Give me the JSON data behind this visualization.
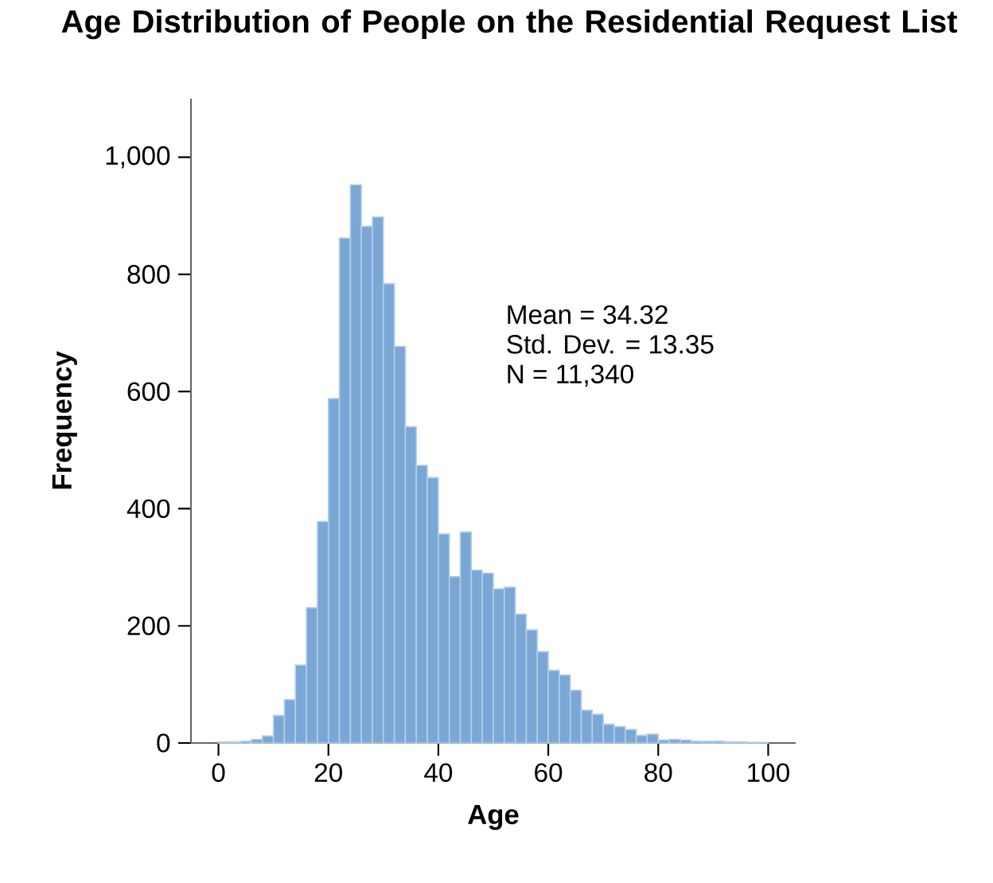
{
  "chart_data": {
    "type": "histogram",
    "title": "Age Distribution of People on the Residential Request List",
    "xlabel": "Age",
    "ylabel": "Frequency",
    "annotations": [
      "Mean = 34.32",
      "Std. Dev. = 13.35",
      "N = 11,340"
    ],
    "bins": [
      0,
      2,
      4,
      6,
      8,
      10,
      12,
      14,
      16,
      18,
      20,
      22,
      24,
      26,
      28,
      30,
      32,
      34,
      36,
      38,
      40,
      42,
      44,
      46,
      48,
      50,
      52,
      54,
      56,
      58,
      60,
      62,
      64,
      66,
      68,
      70,
      72,
      74,
      76,
      78,
      80,
      82,
      84,
      86,
      88,
      90,
      92,
      94,
      96,
      98,
      100
    ],
    "values": [
      2,
      2,
      3,
      6,
      12,
      47,
      74,
      133,
      231,
      378,
      588,
      862,
      953,
      882,
      898,
      784,
      677,
      540,
      474,
      453,
      357,
      284,
      360,
      295,
      290,
      263,
      266,
      220,
      193,
      156,
      124,
      116,
      90,
      56,
      49,
      32,
      28,
      23,
      13,
      15,
      5,
      6,
      5,
      3,
      3,
      3,
      2,
      2,
      1,
      1
    ],
    "color": "#7aa7d6",
    "xlim": [
      -5,
      105
    ],
    "ylim": [
      0,
      1100
    ],
    "xticks": [
      0,
      20,
      40,
      60,
      80,
      100
    ],
    "yticks": [
      0,
      200,
      400,
      600,
      800,
      {
        "value": 1000,
        "label": "1,000"
      }
    ]
  }
}
